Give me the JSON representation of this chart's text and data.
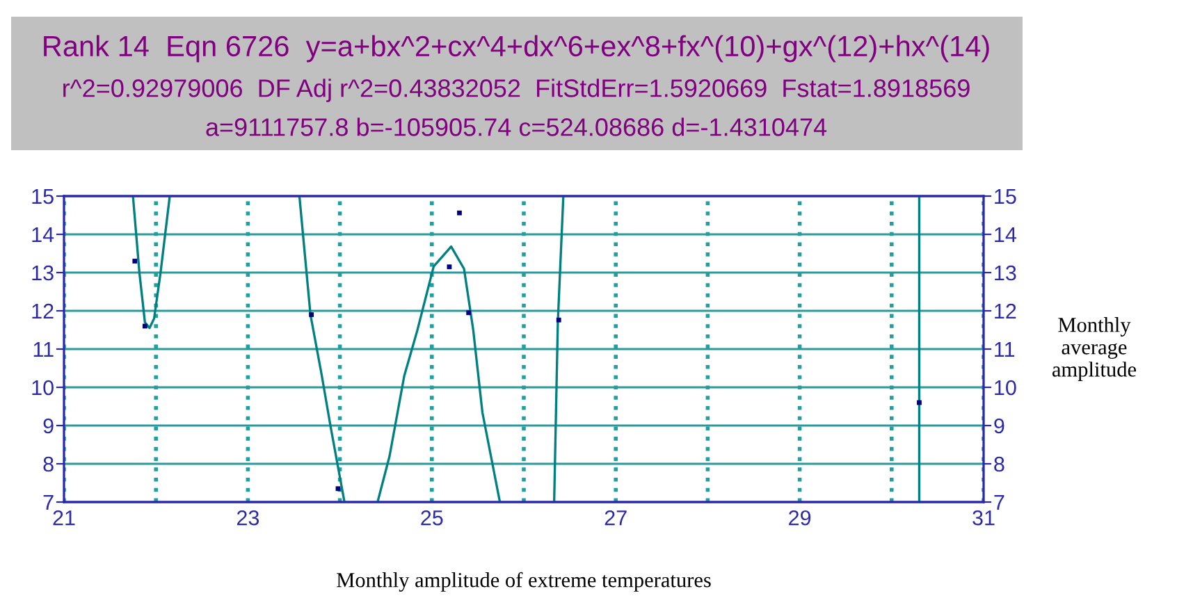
{
  "chart_data": {
    "type": "scatter",
    "title": "Rank 14  Eqn 6726  y=a+bx^2+cx^4+dx^6+ex^8+fx^(10)+gx^(12)+hx^(14)",
    "subtitle": "r^2=0.92979006  DF Adj r^2=0.43832052  FitStdErr=1.5920669  Fstat=1.8918569",
    "annotations": [
      "a=9111757.8 b=-105905.74 c=524.08686 d=-1.4310474"
    ],
    "xlabel": "Monthly amplitude of extreme temperatures",
    "y2label": "Monthly average amplitude",
    "xlim": [
      21,
      31
    ],
    "xticks": [
      21,
      {
        "value": 22,
        "label": null
      },
      23,
      {
        "value": 24,
        "label": null
      },
      25,
      {
        "value": 26,
        "label": null
      },
      27,
      {
        "value": 28,
        "label": null
      },
      29,
      {
        "value": 30,
        "label": null
      },
      31
    ],
    "ylim": [
      7,
      15
    ],
    "yticks": [
      7,
      8,
      9,
      10,
      11,
      12,
      13,
      14,
      15
    ],
    "y2lim": [
      7,
      15
    ],
    "y2ticks": [
      7,
      8,
      9,
      10,
      11,
      12,
      13,
      14,
      15
    ],
    "grid": true,
    "series": [
      {
        "type": "scatter",
        "color": "#000080",
        "marker": "square",
        "x": [
          21.77,
          21.88,
          23.69,
          23.98,
          25.19,
          25.3,
          25.4,
          26.38,
          30.3
        ],
        "values": [
          13.3,
          11.6,
          11.9,
          7.35,
          13.15,
          14.56,
          11.95,
          11.76,
          9.6
        ]
      },
      {
        "type": "line",
        "color": "#008080",
        "line_style": "solid",
        "x": [
          21.75,
          21.82,
          21.88,
          21.93,
          21.98,
          22.05,
          22.1,
          22.15,
          22.2,
          23.56,
          23.68,
          23.8,
          23.9,
          24.05,
          24.2,
          24.41,
          24.54,
          24.7,
          24.84,
          25.02,
          25.21,
          25.35,
          25.45,
          25.55,
          25.74,
          26.0,
          26.33,
          26.37,
          26.43,
          28.0,
          30.3,
          30.3
        ],
        "values": [
          15,
          13,
          11.7,
          11.55,
          11.8,
          13,
          14,
          15,
          null,
          15,
          11.9,
          10.35,
          8.96,
          7,
          null,
          7,
          8.2,
          10.3,
          11.47,
          13.16,
          13.68,
          13.1,
          11.5,
          9.34,
          7,
          null,
          7,
          11.7,
          15,
          null,
          7,
          15
        ]
      }
    ]
  }
}
